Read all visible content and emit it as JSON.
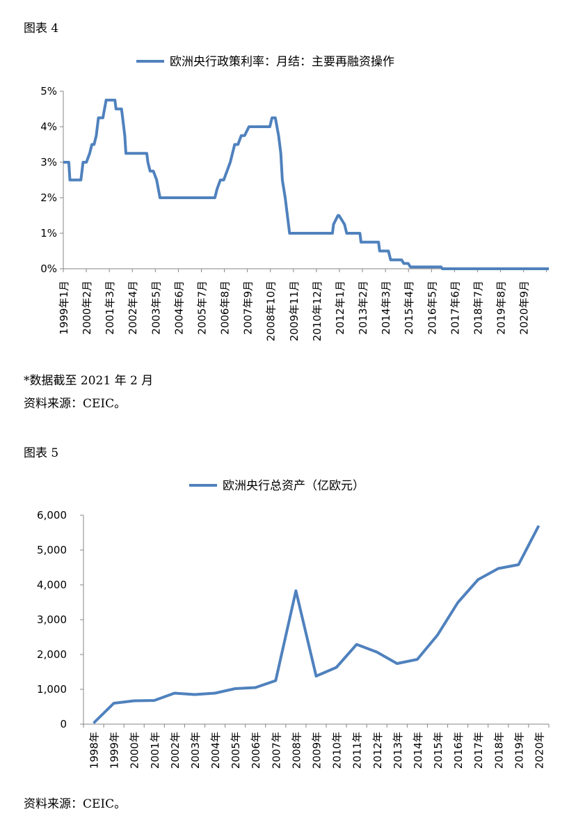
{
  "chart_data": [
    {
      "type": "line",
      "figure_label": "图表 4",
      "legend": "欧洲央行政策利率：月结：主要再融资操作",
      "series_color": "#4F81BD",
      "ylim": [
        0,
        5
      ],
      "y_unit": "%",
      "yticks": [
        0,
        1,
        2,
        3,
        4,
        5
      ],
      "ytick_labels": [
        "0%",
        "1%",
        "2%",
        "3%",
        "4%",
        "5%"
      ],
      "xlim": [
        1999.0,
        2021.1
      ],
      "x_tick_labels": [
        "1999年1月",
        "2000年2月",
        "2001年3月",
        "2002年4月",
        "2003年5月",
        "2004年6月",
        "2005年7月",
        "2006年8月",
        "2007年9月",
        "2008年10月",
        "2009年11月",
        "2010年12月",
        "2012年1月",
        "2013年2月",
        "2014年3月",
        "2015年4月",
        "2016年5月",
        "2017年6月",
        "2018年7月",
        "2019年8月",
        "2020年9月"
      ],
      "x": [
        1999.0,
        1999.25,
        1999.3,
        1999.8,
        1999.9,
        2000.05,
        2000.2,
        2000.3,
        2000.4,
        2000.5,
        2000.6,
        2000.8,
        2000.95,
        2001.35,
        2001.4,
        2001.65,
        2001.7,
        2001.8,
        2001.85,
        2002.8,
        2002.85,
        2002.95,
        2003.1,
        2003.25,
        2003.4,
        2005.9,
        2006.0,
        2006.15,
        2006.3,
        2006.45,
        2006.6,
        2006.7,
        2006.8,
        2006.95,
        2007.1,
        2007.25,
        2007.45,
        2008.4,
        2008.5,
        2008.65,
        2008.8,
        2008.9,
        2008.97,
        2009.1,
        2009.3,
        2010.0,
        2011.25,
        2011.3,
        2011.5,
        2011.55,
        2011.8,
        2011.9,
        2012.5,
        2012.55,
        2013.35,
        2013.4,
        2013.8,
        2013.9,
        2014.4,
        2014.5,
        2014.7,
        2014.8,
        2016.2,
        2016.25,
        2021.1
      ],
      "y": [
        3.0,
        3.0,
        2.5,
        2.5,
        3.0,
        3.0,
        3.25,
        3.5,
        3.5,
        3.75,
        4.25,
        4.25,
        4.75,
        4.75,
        4.5,
        4.5,
        4.25,
        3.75,
        3.25,
        3.25,
        3.0,
        2.75,
        2.75,
        2.5,
        2.0,
        2.0,
        2.25,
        2.5,
        2.5,
        2.75,
        3.0,
        3.25,
        3.5,
        3.5,
        3.75,
        3.75,
        4.0,
        4.0,
        4.25,
        4.25,
        3.75,
        3.25,
        2.5,
        2.0,
        1.0,
        1.0,
        1.0,
        1.25,
        1.5,
        1.5,
        1.25,
        1.0,
        1.0,
        0.75,
        0.75,
        0.5,
        0.5,
        0.25,
        0.25,
        0.15,
        0.15,
        0.05,
        0.05,
        0.0,
        0.0
      ]
    },
    {
      "type": "line",
      "figure_label": "图表 5",
      "legend": "欧洲央行总资产（亿欧元）",
      "series_color": "#4F81BD",
      "ylim": [
        0,
        6000
      ],
      "yticks": [
        0,
        1000,
        2000,
        3000,
        4000,
        5000,
        6000
      ],
      "ytick_labels": [
        "0",
        "1,000",
        "2,000",
        "3,000",
        "4,000",
        "5,000",
        "6,000"
      ],
      "categories": [
        "1998年",
        "1999年",
        "2000年",
        "2001年",
        "2002年",
        "2003年",
        "2004年",
        "2005年",
        "2006年",
        "2007年",
        "2008年",
        "2009年",
        "2010年",
        "2011年",
        "2012年",
        "2013年",
        "2014年",
        "2015年",
        "2016年",
        "2017年",
        "2018年",
        "2019年",
        "2020年"
      ],
      "values": [
        30,
        600,
        670,
        680,
        890,
        850,
        890,
        1020,
        1050,
        1250,
        3830,
        1380,
        1630,
        2290,
        2070,
        1740,
        1860,
        2560,
        3490,
        4150,
        4470,
        4580,
        5700
      ]
    }
  ],
  "notes": {
    "note_data_cutoff": "*数据截至 2021 年 2 月",
    "source1": "资料来源：CEIC。",
    "source2": "资料来源：CEIC。"
  }
}
